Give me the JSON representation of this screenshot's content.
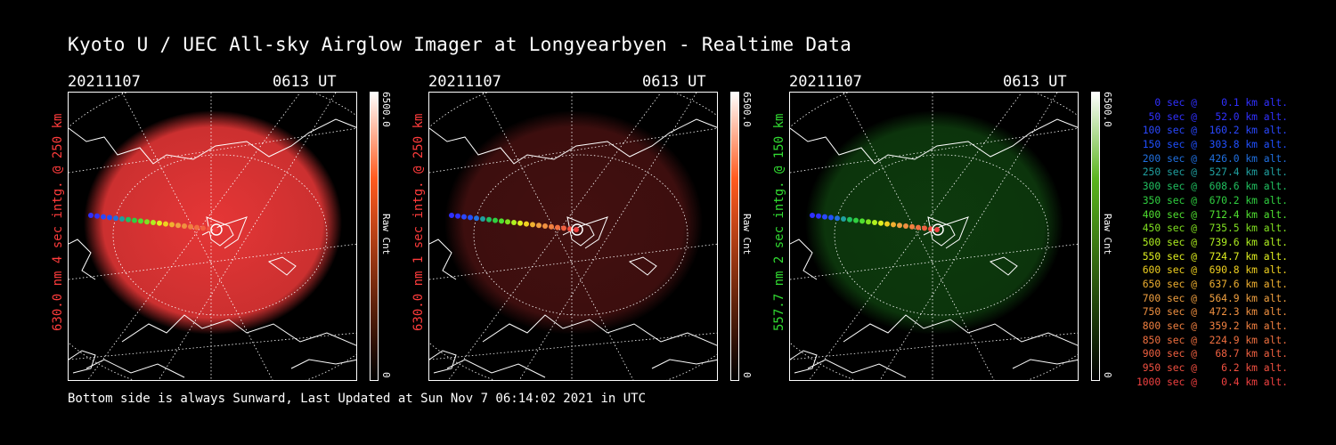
{
  "title": "Kyoto U / UEC All-sky Airglow Imager at Longyearbyen - Realtime Data",
  "panels": [
    {
      "date": "20211107",
      "time": "0613 UT",
      "ylabel": "630.0 nm 4 sec intg. @ 250 km",
      "cbar_max": "6500.0",
      "cbar_min": "0",
      "cbar_unit": "Raw Cnt",
      "color": "#ff3c3c",
      "intensity": 1.0,
      "cbar_top": "#ffffff",
      "cbar_mid": "#ff5a1e",
      "cbar_bottom": "#000000"
    },
    {
      "date": "20211107",
      "time": "0613 UT",
      "ylabel": "630.0 nm 1 sec intg. @ 250 km",
      "cbar_max": "6500.0",
      "cbar_min": "0",
      "cbar_unit": "Raw Cnt",
      "color": "#ff3c3c",
      "intensity": 0.25,
      "cbar_top": "#ffffff",
      "cbar_mid": "#ff5a1e",
      "cbar_bottom": "#000000"
    },
    {
      "date": "20211107",
      "time": "0613 UT",
      "ylabel": "557.7 nm 2 sec intg. @ 150 km",
      "cbar_max": "6500.0",
      "cbar_min": "0",
      "cbar_unit": "Raw Cnt",
      "color": "#32dc32",
      "intensity": 0.25,
      "cbar_top": "#ffffff",
      "cbar_mid": "#5ab41e",
      "cbar_bottom": "#000000"
    }
  ],
  "footer": "Bottom side is always Sunward, Last Updated at Sun Nov  7 06:14:02 2021 in UTC",
  "legend": [
    {
      "text": "   0 sec @    0.1 km alt.",
      "color": "#3030ff"
    },
    {
      "text": "  50 sec @   52.0 km alt.",
      "color": "#3030ff"
    },
    {
      "text": " 100 sec @  160.2 km alt.",
      "color": "#2a48ff"
    },
    {
      "text": " 150 sec @  303.8 km alt.",
      "color": "#2050ff"
    },
    {
      "text": " 200 sec @  426.0 km alt.",
      "color": "#2070e0"
    },
    {
      "text": " 250 sec @  527.4 km alt.",
      "color": "#20a0a0"
    },
    {
      "text": " 300 sec @  608.6 km alt.",
      "color": "#20c060"
    },
    {
      "text": " 350 sec @  670.2 km alt.",
      "color": "#30d040"
    },
    {
      "text": " 400 sec @  712.4 km alt.",
      "color": "#50e030"
    },
    {
      "text": " 450 sec @  735.5 km alt.",
      "color": "#80e020"
    },
    {
      "text": " 500 sec @  739.6 km alt.",
      "color": "#b0f020"
    },
    {
      "text": " 550 sec @  724.7 km alt.",
      "color": "#e0f020"
    },
    {
      "text": " 600 sec @  690.8 km alt.",
      "color": "#f0d020"
    },
    {
      "text": " 650 sec @  637.6 km alt.",
      "color": "#f0b030"
    },
    {
      "text": " 700 sec @  564.9 km alt.",
      "color": "#f0a040"
    },
    {
      "text": " 750 sec @  472.3 km alt.",
      "color": "#f09040"
    },
    {
      "text": " 800 sec @  359.2 km alt.",
      "color": "#f08040"
    },
    {
      "text": " 850 sec @  224.9 km alt.",
      "color": "#f07040"
    },
    {
      "text": " 900 sec @   68.7 km alt.",
      "color": "#f06040"
    },
    {
      "text": " 950 sec @    6.2 km alt.",
      "color": "#f05040"
    },
    {
      "text": "1000 sec @    0.4 km alt.",
      "color": "#f04040"
    }
  ]
}
